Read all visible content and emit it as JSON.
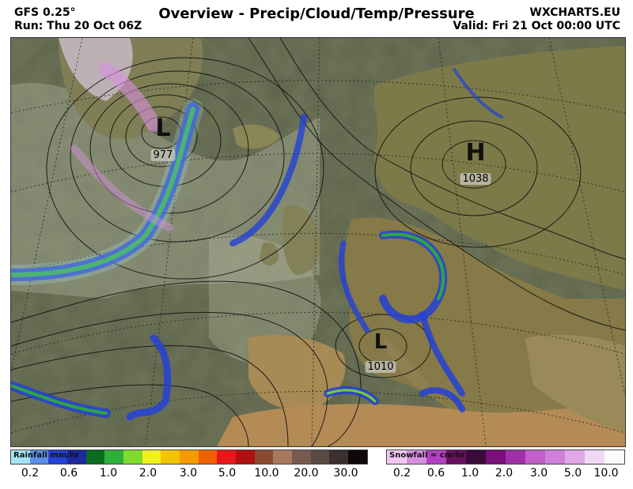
{
  "header": {
    "model": "GFS 0.25°",
    "run": "Run: Thu 20 Oct 06Z",
    "title": "Overview - Precip/Cloud/Temp/Pressure",
    "brand": "WXCHARTS.EU",
    "valid": "Valid: Fri 21 Oct 00:00 UTC"
  },
  "pressure_centres": [
    {
      "type": "L",
      "value": "977"
    },
    {
      "type": "H",
      "value": "1038"
    },
    {
      "type": "L",
      "value": "1010"
    }
  ],
  "rain_legend": {
    "title": "Rainfall mm/hr",
    "colors": [
      "#a3e4f5",
      "#5b8ee6",
      "#2441d6",
      "#1c2aa0",
      "#0b6b1e",
      "#2fae3a",
      "#7fdc2c",
      "#f0f020",
      "#f5c400",
      "#f59a00",
      "#f06000",
      "#e81818",
      "#b01010",
      "#8a4a30",
      "#a87860",
      "#7a5a50",
      "#5a4a44",
      "#3a3030",
      "#100808"
    ],
    "ticks": [
      "0.2",
      "0.6",
      "1.0",
      "2.0",
      "3.0",
      "5.0",
      "10.0",
      "20.0",
      "30.0"
    ]
  },
  "snow_legend": {
    "title": "Snowfall ≈ cm/hr",
    "colors": [
      "#f0c8f0",
      "#d890e0",
      "#b040c0",
      "#6a1060",
      "#3a0a3a",
      "#7a107a",
      "#a030a8",
      "#c060c8",
      "#d080d8",
      "#e0a8e8",
      "#f0d8f5",
      "#fafafa"
    ],
    "ticks": [
      "0.2",
      "0.6",
      "1.0",
      "2.0",
      "3.0",
      "5.0",
      "10.0"
    ]
  }
}
